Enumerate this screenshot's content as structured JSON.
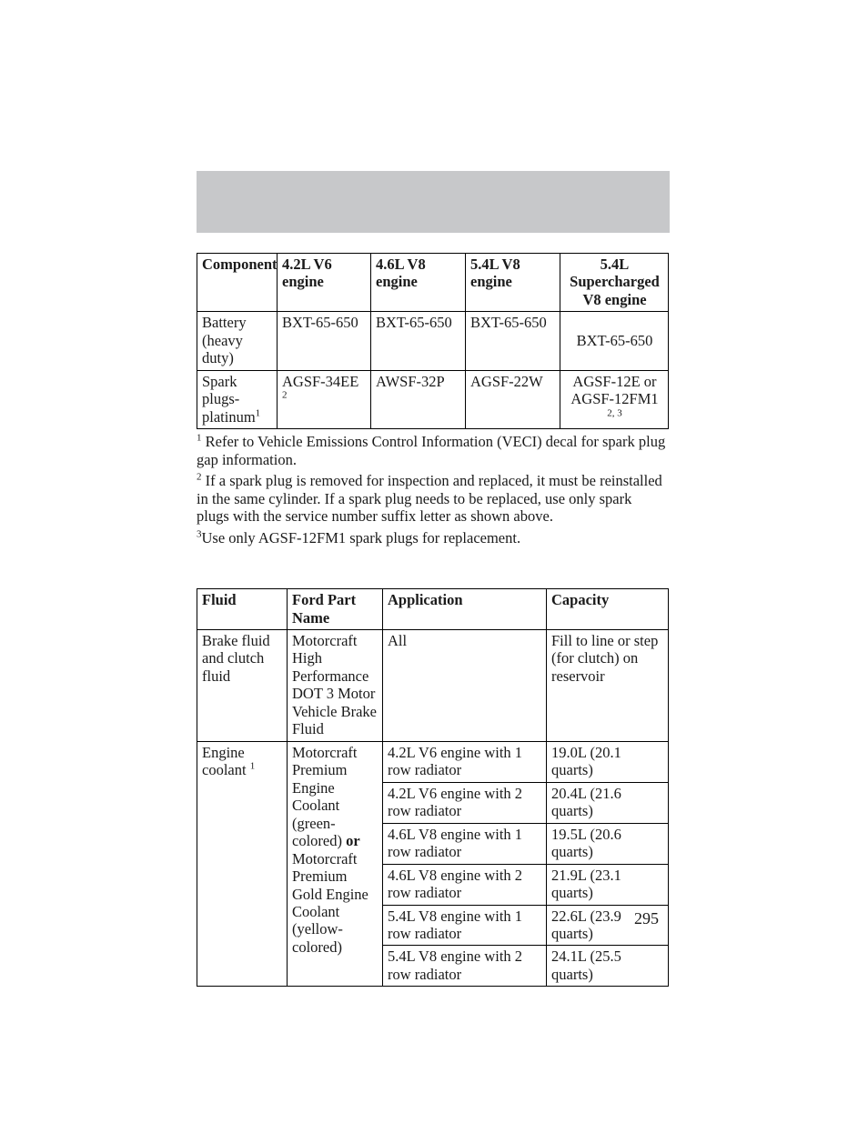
{
  "page_number": "295",
  "table1": {
    "headers": {
      "c1": "Component",
      "c2": "4.2L V6 engine",
      "c3": "4.6L V8 engine",
      "c4": "5.4L V8 engine",
      "c5": "5.4L Supercharged V8 engine"
    },
    "rows": [
      {
        "c1": "Battery (heavy duty)",
        "c2": "BXT-65-650",
        "c3": "BXT-65-650",
        "c4": "BXT-65-650",
        "c5": "BXT-65-650",
        "c5_center": true
      },
      {
        "c1_pre": "Spark plugs- platinum",
        "c1_sup": "1",
        "c2_pre": "AGSF-34EE ",
        "c2_sup": "2",
        "c3": "AWSF-32P",
        "c4": "AGSF-22W",
        "c5_line1": "AGSF-12E or",
        "c5_line2": "AGSF-12FM1",
        "c5_sup": "2, 3",
        "c5_center": true
      }
    ]
  },
  "footnotes": {
    "f1_sup": "1",
    "f1": " Refer to Vehicle Emissions Control Information (VECI) decal for spark plug gap information.",
    "f2_sup": "2",
    "f2": " If a spark plug is removed for inspection and replaced, it must be reinstalled in the same cylinder. If a spark plug needs to be replaced, use only spark plugs with the service number suffix letter as shown above.",
    "f3_sup": "3",
    "f3": "Use only AGSF-12FM1 spark plugs for replacement."
  },
  "table2": {
    "headers": {
      "c1": "Fluid",
      "c2": "Ford Part Name",
      "c3": "Application",
      "c4": "Capacity"
    },
    "r1": {
      "c1": "Brake fluid and clutch fluid",
      "c2": "Motorcraft High Performance DOT 3 Motor Vehicle Brake Fluid",
      "c3": "All",
      "c4": "Fill to line or step (for clutch) on reservoir"
    },
    "coolant": {
      "c1_pre": "Engine coolant ",
      "c1_sup": "1",
      "c2_a": "Motorcraft Premium Engine Coolant (green-colored) ",
      "c2_b": "or",
      "c2_c": " Motorcraft Premium Gold Engine Coolant (yellow-colored)",
      "rows": [
        {
          "app": "4.2L V6 engine with 1 row radiator",
          "cap": "19.0L (20.1 quarts)"
        },
        {
          "app": "4.2L V6 engine with 2 row radiator",
          "cap": "20.4L (21.6 quarts)"
        },
        {
          "app": "4.6L V8 engine with 1 row radiator",
          "cap": "19.5L (20.6 quarts)"
        },
        {
          "app": "4.6L V8 engine with 2 row radiator",
          "cap": "21.9L (23.1 quarts)"
        },
        {
          "app": "5.4L V8 engine with 1 row radiator",
          "cap": "22.6L (23.9 quarts)"
        },
        {
          "app": "5.4L V8 engine with 2 row radiator",
          "cap": "24.1L (25.5 quarts)"
        }
      ]
    }
  }
}
